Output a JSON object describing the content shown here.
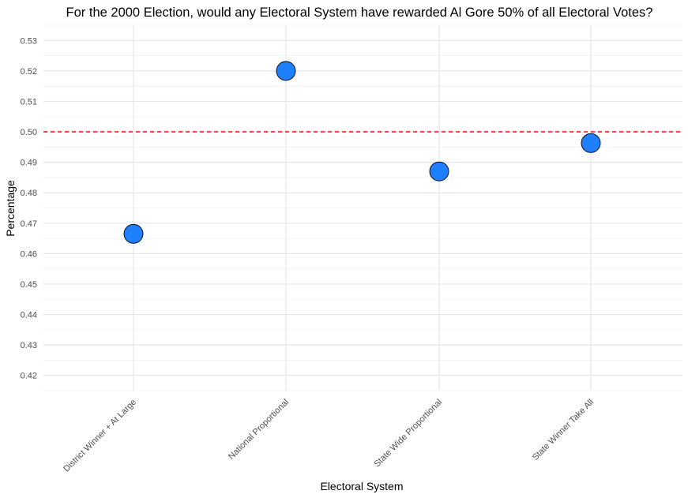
{
  "chart_data": {
    "type": "scatter",
    "title": "For the 2000 Election, would any Electoral System have rewarded Al Gore 50% of all Electoral Votes?",
    "xlabel": "Electoral System",
    "ylabel": "Percentage",
    "categories": [
      "District Winner + At Large",
      "National Proportional",
      "State Wide Proportional",
      "State Winner Take All"
    ],
    "values": [
      0.4665,
      0.52,
      0.487,
      0.4963
    ],
    "ylim": [
      0.415,
      0.535
    ],
    "yticks": [
      "0.42",
      "0.43",
      "0.44",
      "0.45",
      "0.46",
      "0.47",
      "0.48",
      "0.49",
      "0.50",
      "0.51",
      "0.52",
      "0.53"
    ],
    "reference_line": {
      "y": 0.5,
      "style": "dashed",
      "color": "#ff0000"
    },
    "point_color": "#1e7fff",
    "grid": true
  }
}
